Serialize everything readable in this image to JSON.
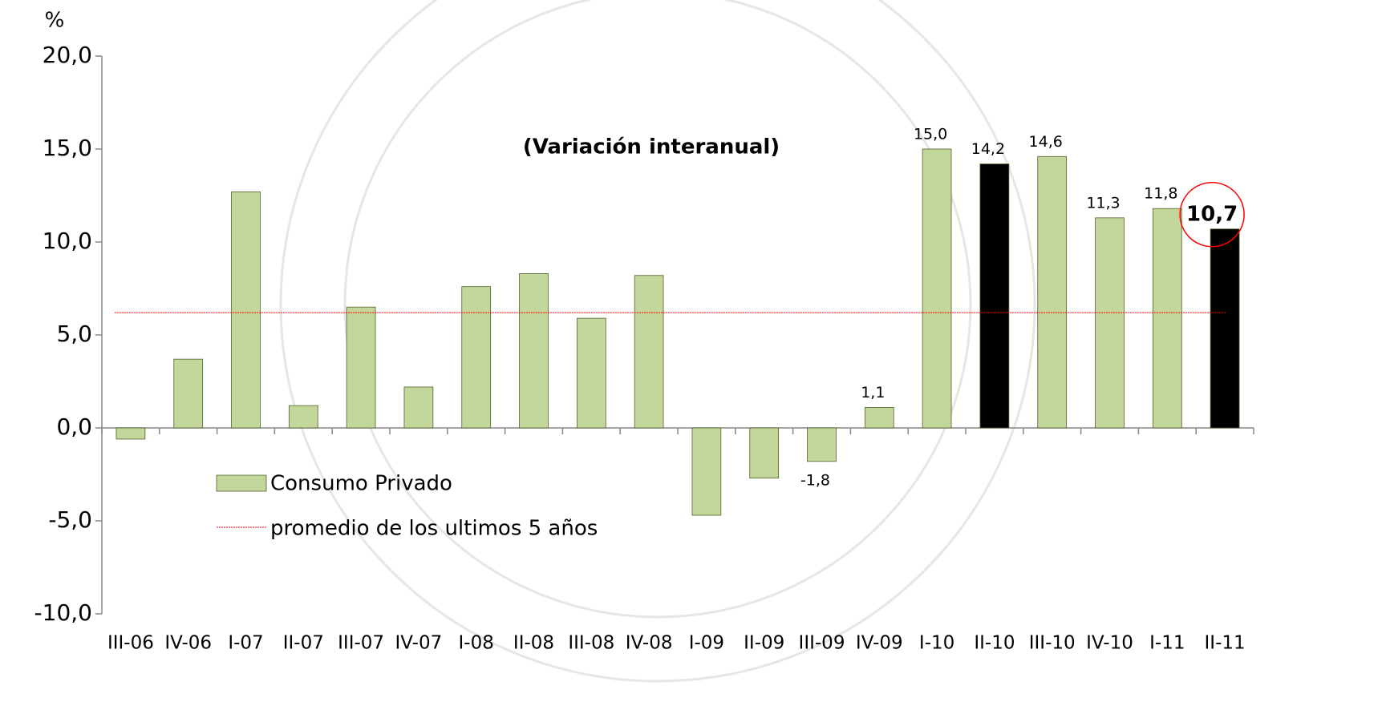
{
  "chart_data": {
    "type": "bar",
    "title": "(Variación interanual)",
    "y_label": "%",
    "categories": [
      "III-06",
      "IV-06",
      "I-07",
      "II-07",
      "III-07",
      "IV-07",
      "I-08",
      "II-08",
      "III-08",
      "IV-08",
      "I-09",
      "II-09",
      "III-09",
      "IV-09",
      "I-10",
      "II-10",
      "III-10",
      "IV-10",
      "I-11",
      "II-11"
    ],
    "series": [
      {
        "name": "Consumo Privado",
        "color": "#c3d69b",
        "values": [
          -0.6,
          3.7,
          12.7,
          1.2,
          6.5,
          2.2,
          7.6,
          8.3,
          5.9,
          8.2,
          -4.7,
          -2.7,
          -1.8,
          1.1,
          15.0,
          14.2,
          14.6,
          11.3,
          11.8,
          10.7
        ],
        "colors": [
          "#c3d69b",
          "#c3d69b",
          "#c3d69b",
          "#c3d69b",
          "#c3d69b",
          "#c3d69b",
          "#c3d69b",
          "#c3d69b",
          "#c3d69b",
          "#c3d69b",
          "#c3d69b",
          "#c3d69b",
          "#c3d69b",
          "#c3d69b",
          "#c3d69b",
          "#000000",
          "#c3d69b",
          "#c3d69b",
          "#c3d69b",
          "#000000"
        ],
        "value_labels": [
          null,
          null,
          null,
          null,
          null,
          null,
          null,
          null,
          null,
          null,
          null,
          null,
          "-1,8",
          "1,1",
          "15,0",
          "14,2",
          "14,6",
          "11,3",
          "11,8",
          "10,7"
        ]
      }
    ],
    "average": {
      "name": "promedio de los ultimos 5 años",
      "value": 6.2,
      "color": "#ff0000"
    },
    "highlight": {
      "index": 19,
      "color": "#ff0000"
    },
    "ylim": [
      -10,
      20
    ],
    "yticks": [
      {
        "value": -10,
        "label": "-10,0"
      },
      {
        "value": -5,
        "label": "-5,0"
      },
      {
        "value": 0,
        "label": "0,0"
      },
      {
        "value": 5,
        "label": "5,0"
      },
      {
        "value": 10,
        "label": "10,0"
      },
      {
        "value": 15,
        "label": "15,0"
      },
      {
        "value": 20,
        "label": "20,0"
      }
    ],
    "grid": false
  }
}
